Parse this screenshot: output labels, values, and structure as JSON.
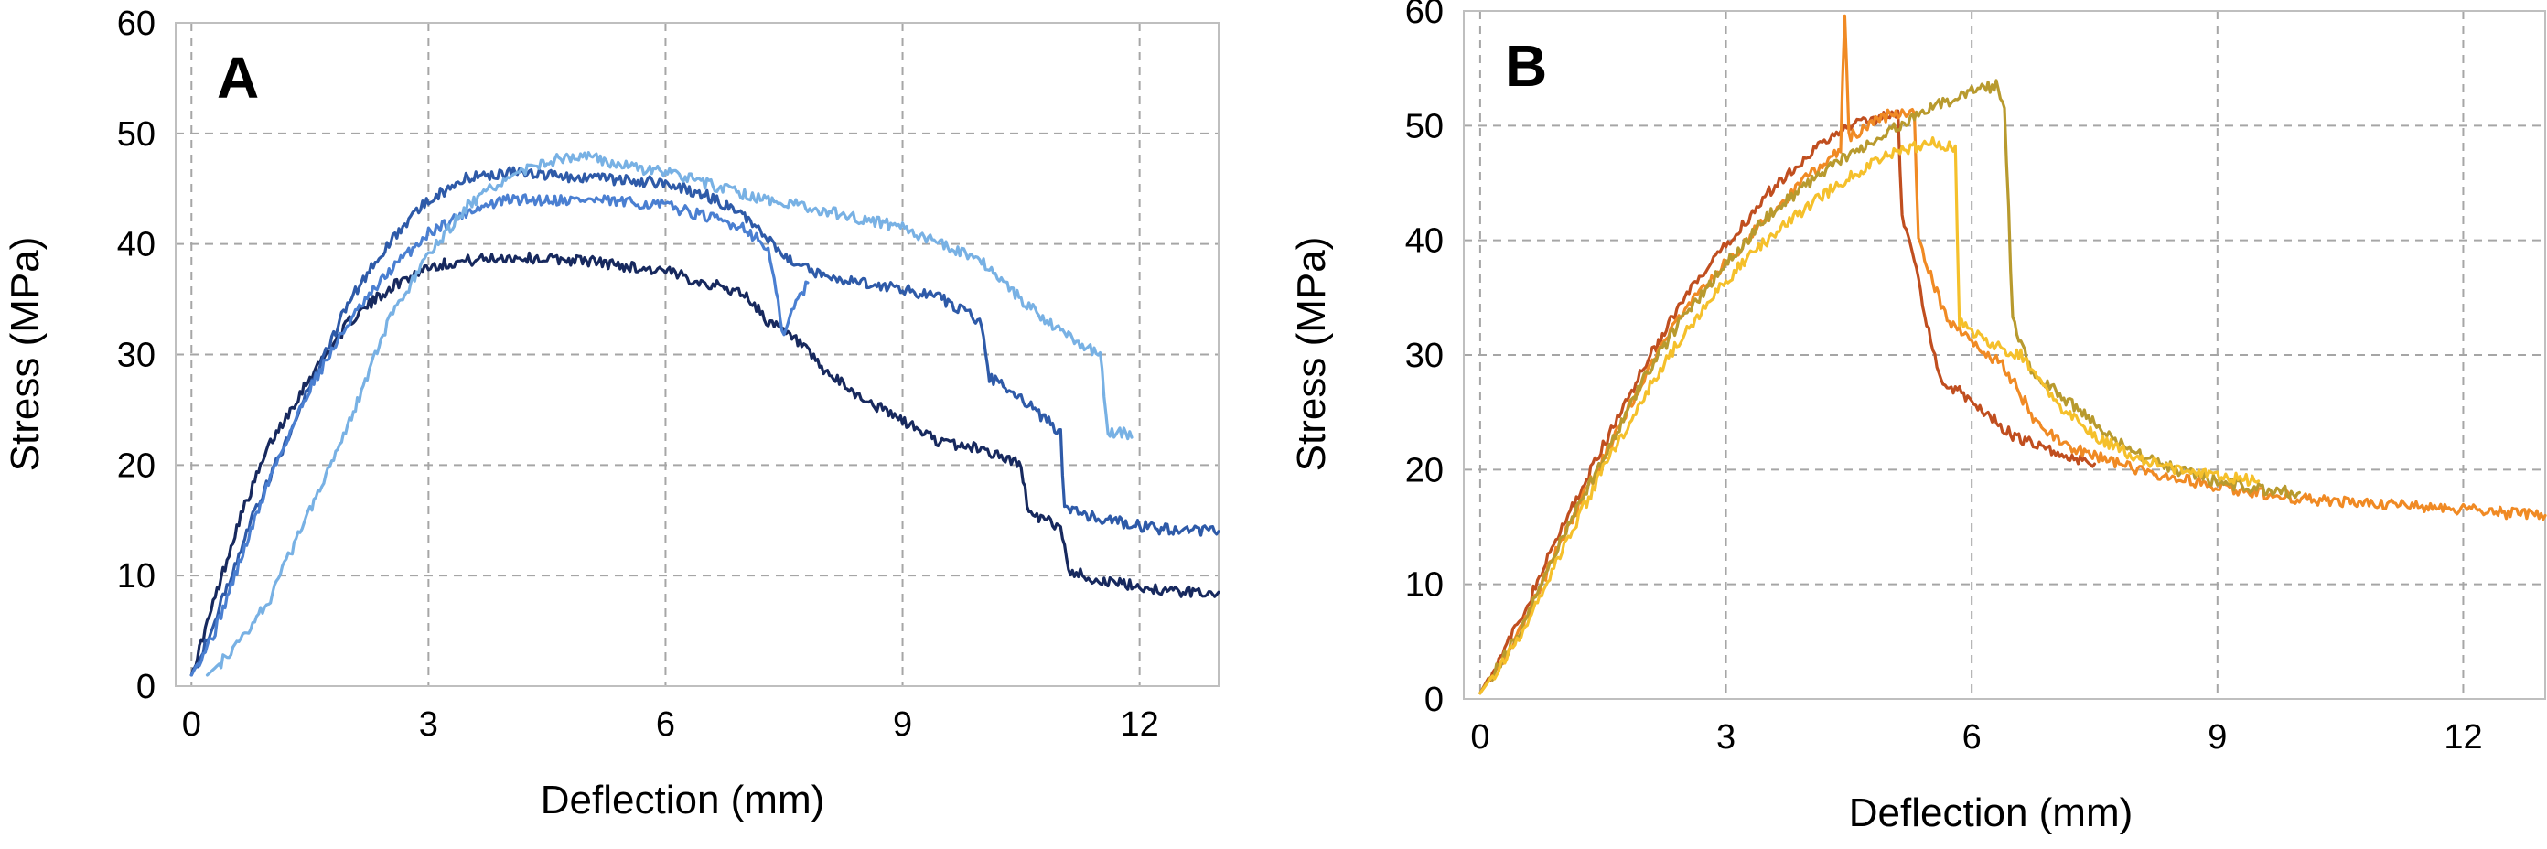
{
  "chart_data": [
    {
      "type": "line",
      "panel_label": "A",
      "xlabel": "Deflection (mm)",
      "ylabel": "Stress (MPa)",
      "xlim": [
        -0.2,
        13
      ],
      "ylim": [
        0,
        60
      ],
      "xticks": [
        "0",
        "3",
        "6",
        "9",
        "12"
      ],
      "yticks": [
        "0",
        "10",
        "20",
        "30",
        "40",
        "50",
        "60"
      ],
      "grid": true,
      "series": [
        {
          "color": "#17295e",
          "points": [
            [
              0,
              1
            ],
            [
              0.3,
              8
            ],
            [
              0.6,
              15
            ],
            [
              1,
              22
            ],
            [
              1.5,
              28
            ],
            [
              2,
              33
            ],
            [
              2.5,
              36
            ],
            [
              3,
              38
            ],
            [
              3.5,
              38.5
            ],
            [
              4,
              38.8
            ],
            [
              5,
              38.5
            ],
            [
              6,
              37.5
            ],
            [
              6.5,
              36.5
            ],
            [
              7,
              35.5
            ],
            [
              7.3,
              33
            ],
            [
              7.7,
              31
            ],
            [
              8,
              28.5
            ],
            [
              8.5,
              26
            ],
            [
              9,
              24
            ],
            [
              9.5,
              22
            ],
            [
              10,
              21.5
            ],
            [
              10.5,
              20
            ],
            [
              10.6,
              15.5
            ],
            [
              11,
              14.5
            ],
            [
              11.1,
              10.5
            ],
            [
              11.5,
              9.5
            ],
            [
              12,
              9
            ],
            [
              12.5,
              8.5
            ],
            [
              13,
              8.5
            ]
          ]
        },
        {
          "color": "#2e5aa8",
          "points": [
            [
              0,
              1
            ],
            [
              0.3,
              6
            ],
            [
              0.7,
              14
            ],
            [
              1,
              19
            ],
            [
              1.5,
              27
            ],
            [
              2,
              35
            ],
            [
              2.5,
              40
            ],
            [
              3,
              44
            ],
            [
              3.5,
              46
            ],
            [
              4,
              46.5
            ],
            [
              5,
              46
            ],
            [
              6,
              45.5
            ],
            [
              6.5,
              44.5
            ],
            [
              7,
              42.5
            ],
            [
              7.5,
              39
            ],
            [
              8,
              37
            ],
            [
              9,
              36
            ],
            [
              9.5,
              35
            ],
            [
              10,
              33
            ],
            [
              10.1,
              28
            ],
            [
              10.5,
              26
            ],
            [
              11,
              23
            ],
            [
              11.05,
              16
            ],
            [
              11.5,
              15.2
            ],
            [
              12,
              14.5
            ],
            [
              12.5,
              14
            ],
            [
              13,
              14
            ]
          ]
        },
        {
          "color": "#4a7fd1",
          "points": [
            [
              0,
              1
            ],
            [
              0.3,
              5
            ],
            [
              0.7,
              13
            ],
            [
              1,
              19
            ],
            [
              1.5,
              27
            ],
            [
              2,
              33
            ],
            [
              2.5,
              37.5
            ],
            [
              3,
              41
            ],
            [
              3.5,
              43
            ],
            [
              4,
              44
            ],
            [
              5,
              44
            ],
            [
              6,
              43.5
            ],
            [
              6.5,
              42.5
            ],
            [
              7,
              41.5
            ],
            [
              7.3,
              39.5
            ],
            [
              7.5,
              31.5
            ],
            [
              7.6,
              34
            ],
            [
              7.8,
              36.5
            ]
          ]
        },
        {
          "color": "#78b1e4",
          "points": [
            [
              0.2,
              1
            ],
            [
              0.5,
              3
            ],
            [
              1,
              8
            ],
            [
              1.5,
              16
            ],
            [
              2,
              24
            ],
            [
              2.5,
              33
            ],
            [
              3,
              39
            ],
            [
              3.5,
              43.5
            ],
            [
              4,
              46
            ],
            [
              4.5,
              47.5
            ],
            [
              5,
              48
            ],
            [
              5.5,
              47
            ],
            [
              6,
              46.5
            ],
            [
              6.5,
              45.5
            ],
            [
              7,
              44.5
            ],
            [
              8,
              43
            ],
            [
              9,
              41.5
            ],
            [
              10,
              38.5
            ],
            [
              10.5,
              35
            ],
            [
              11,
              32
            ],
            [
              11.5,
              30
            ],
            [
              11.6,
              23
            ],
            [
              11.8,
              23
            ],
            [
              11.9,
              22.5
            ]
          ]
        }
      ]
    },
    {
      "type": "line",
      "panel_label": "B",
      "xlabel": "Deflection (mm)",
      "ylabel": "Stress (MPa)",
      "xlim": [
        -0.2,
        13
      ],
      "ylim": [
        0,
        60
      ],
      "xticks": [
        "0",
        "3",
        "6",
        "9",
        "12"
      ],
      "yticks": [
        "0",
        "10",
        "20",
        "30",
        "40",
        "50",
        "60"
      ],
      "grid": true,
      "series": [
        {
          "color": "#c04e1f",
          "points": [
            [
              0,
              0.5
            ],
            [
              0.5,
              7
            ],
            [
              1,
              15
            ],
            [
              1.5,
              22
            ],
            [
              2,
              29
            ],
            [
              2.5,
              35
            ],
            [
              3,
              39.5
            ],
            [
              3.5,
              44
            ],
            [
              4,
              47.5
            ],
            [
              4.5,
              50
            ],
            [
              5,
              51
            ],
            [
              5.1,
              51.2
            ],
            [
              5.15,
              42
            ],
            [
              5.3,
              38
            ],
            [
              5.6,
              28
            ],
            [
              6,
              26
            ],
            [
              6.5,
              23
            ],
            [
              7,
              21.5
            ],
            [
              7.5,
              20.5
            ]
          ]
        },
        {
          "color": "#f08a24",
          "points": [
            [
              0,
              0.5
            ],
            [
              0.5,
              6
            ],
            [
              1,
              14
            ],
            [
              1.5,
              21
            ],
            [
              2,
              28
            ],
            [
              2.5,
              34
            ],
            [
              3,
              38
            ],
            [
              3.5,
              42
            ],
            [
              4,
              45.5
            ],
            [
              4.4,
              48
            ],
            [
              4.45,
              60
            ],
            [
              4.5,
              49
            ],
            [
              5,
              51
            ],
            [
              5.3,
              51
            ],
            [
              5.35,
              40
            ],
            [
              5.7,
              33
            ],
            [
              6,
              31
            ],
            [
              6.4,
              29
            ],
            [
              6.8,
              24
            ],
            [
              7.2,
              22
            ],
            [
              8,
              20
            ],
            [
              9,
              18.5
            ],
            [
              10,
              17.5
            ],
            [
              11,
              17
            ],
            [
              12,
              16.5
            ],
            [
              13,
              16
            ]
          ]
        },
        {
          "color": "#b89a2e",
          "points": [
            [
              0,
              0.5
            ],
            [
              0.5,
              6
            ],
            [
              1,
              14
            ],
            [
              1.5,
              21
            ],
            [
              2,
              28
            ],
            [
              2.5,
              33.5
            ],
            [
              3,
              38
            ],
            [
              3.5,
              42
            ],
            [
              4,
              45
            ],
            [
              4.5,
              47.5
            ],
            [
              5,
              49.5
            ],
            [
              5.5,
              51.5
            ],
            [
              6,
              53
            ],
            [
              6.3,
              53.5
            ],
            [
              6.4,
              52
            ],
            [
              6.5,
              33
            ],
            [
              6.7,
              29
            ],
            [
              7,
              27
            ],
            [
              7.5,
              24
            ],
            [
              8,
              21.5
            ],
            [
              8.5,
              20
            ],
            [
              9,
              19
            ],
            [
              9.5,
              18.3
            ],
            [
              10,
              18
            ]
          ]
        },
        {
          "color": "#f5c02b",
          "points": [
            [
              0,
              0.5
            ],
            [
              0.5,
              5.5
            ],
            [
              1,
              13
            ],
            [
              1.5,
              20
            ],
            [
              2,
              26.5
            ],
            [
              2.5,
              32
            ],
            [
              3,
              36.5
            ],
            [
              3.5,
              40
            ],
            [
              4,
              43
            ],
            [
              4.5,
              45.5
            ],
            [
              5,
              47.5
            ],
            [
              5.5,
              48.5
            ],
            [
              5.8,
              48
            ],
            [
              5.85,
              33
            ],
            [
              6.2,
              31
            ],
            [
              6.6,
              30
            ],
            [
              7,
              26
            ],
            [
              7.5,
              23
            ],
            [
              8,
              21
            ],
            [
              8.5,
              20
            ],
            [
              9,
              19.5
            ],
            [
              9.5,
              19
            ]
          ]
        }
      ]
    }
  ]
}
